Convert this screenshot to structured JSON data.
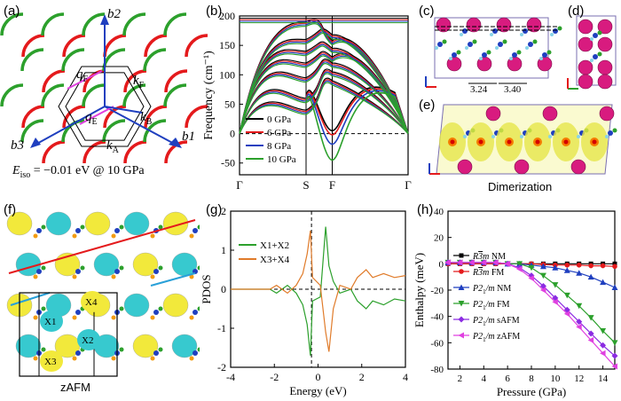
{
  "panels": {
    "a": {
      "label": "(a)",
      "axes": [
        "b2",
        "b3",
        "b1"
      ],
      "vectors": [
        "q",
        "q",
        "k",
        "k",
        "k"
      ],
      "subs": [
        "F",
        "E",
        "F",
        "B",
        "A"
      ],
      "eiso_prefix": "E",
      "eiso_sub": "iso",
      "eiso_rest": " = −0.01 eV @ 10 GPa"
    },
    "b": {
      "label": "(b)"
    },
    "c": {
      "label": "(c)",
      "dist1": "3.24",
      "dist2": "3.40"
    },
    "d": {
      "label": "(d)"
    },
    "e": {
      "label": "(e)",
      "caption": "Dimerization"
    },
    "f": {
      "label": "(f)",
      "sites": [
        "X1",
        "X2",
        "X3",
        "X4"
      ],
      "caption": "zAFM"
    },
    "g": {
      "label": "(g)"
    },
    "h": {
      "label": "(h)"
    }
  },
  "colors": {
    "red": "#e41a1c",
    "green": "#2ca02c",
    "blue": "#1f3fbf",
    "pink": "#d14aa8",
    "yellow": "#f2e93b",
    "cyan": "#37c9cf",
    "orange": "#e07b2a",
    "purple": "#8b2be2",
    "magenta": "#e040e0"
  },
  "chart_data": [
    {
      "type": "line",
      "panel": "b",
      "xlabel": "",
      "ylabel": "Frequency (cm⁻¹)",
      "xticks": [
        "Γ",
        "S",
        "F",
        "Γ"
      ],
      "yticks": [
        -50,
        0,
        50,
        100,
        150,
        200
      ],
      "ylim": [
        -70,
        200
      ],
      "series": [
        {
          "name": "0 GPa",
          "color": "#000000",
          "dip": 5
        },
        {
          "name": "6 GPa",
          "color": "#e41a1c",
          "dip": -2
        },
        {
          "name": "8 GPa",
          "color": "#1f3fbf",
          "dip": -18
        },
        {
          "name": "10 GPa",
          "color": "#2ca02c",
          "dip": -45
        }
      ]
    },
    {
      "type": "line",
      "panel": "g",
      "xlabel": "Energy (eV)",
      "ylabel": "PDOS",
      "xticks": [
        -4,
        -2,
        0,
        2,
        4
      ],
      "yticks": [
        -2,
        -1,
        0,
        1,
        2
      ],
      "xlim": [
        -4,
        4
      ],
      "ylim": [
        -2,
        2
      ],
      "series": [
        {
          "name": "X1+X2",
          "color": "#2ca02c"
        },
        {
          "name": "X3+X4",
          "color": "#e07b2a"
        }
      ]
    },
    {
      "type": "line",
      "panel": "h",
      "xlabel": "Pressure (GPa)",
      "ylabel": "Enthalpy (meV)",
      "xticks": [
        2,
        4,
        6,
        8,
        10,
        12,
        14
      ],
      "yticks": [
        -80,
        -60,
        -40,
        -20,
        0,
        20,
        40
      ],
      "xlim": [
        1,
        15
      ],
      "ylim": [
        -80,
        40
      ],
      "series": [
        {
          "pre": "R",
          "over": "3",
          "post": "m NM",
          "color": "#000000",
          "marker": "square",
          "x": [
            1,
            2,
            3,
            4,
            5,
            6,
            7,
            8,
            9,
            10,
            11,
            12,
            13,
            14,
            15
          ],
          "y": [
            0,
            0,
            0,
            0,
            0,
            0,
            0,
            0,
            0,
            0,
            0,
            0,
            0,
            0,
            0
          ]
        },
        {
          "pre": "R",
          "over": "3",
          "post": "m FM",
          "color": "#e41a1c",
          "marker": "circle",
          "x": [
            1,
            2,
            3,
            4,
            5,
            6,
            7,
            8,
            9,
            10,
            11,
            12,
            13,
            14,
            15
          ],
          "y": [
            0,
            0,
            0,
            0,
            0,
            0,
            0,
            0,
            -0.5,
            -1,
            -1,
            -1,
            -1.5,
            -1.5,
            -2
          ]
        },
        {
          "pre": "P2",
          "sub": "1",
          "post": "/m NM",
          "color": "#1f3fbf",
          "marker": "tri-up",
          "x": [
            1,
            2,
            3,
            4,
            5,
            6,
            7,
            8,
            9,
            10,
            11,
            12,
            13,
            14,
            15
          ],
          "y": [
            1,
            1,
            1,
            1,
            1,
            0,
            0,
            -1,
            -2,
            -3,
            -5,
            -7,
            -10,
            -14,
            -18
          ]
        },
        {
          "pre": "P2",
          "sub": "1",
          "post": "/m FM",
          "color": "#2ca02c",
          "marker": "tri-down",
          "x": [
            1,
            2,
            3,
            4,
            5,
            6,
            7,
            8,
            9,
            10,
            11,
            12,
            13,
            14,
            15
          ],
          "y": [
            1,
            1,
            1,
            1,
            1,
            0,
            0,
            -3,
            -9,
            -16,
            -24,
            -32,
            -41,
            -51,
            -60
          ]
        },
        {
          "pre": "P2",
          "sub": "1",
          "post": "/m sAFM",
          "color": "#8b2be2",
          "marker": "diamond",
          "x": [
            1,
            2,
            3,
            4,
            5,
            6,
            7,
            8,
            9,
            10,
            11,
            12,
            13,
            14,
            15
          ],
          "y": [
            1,
            1,
            1,
            1,
            1,
            0,
            -3,
            -9,
            -17,
            -26,
            -35,
            -44,
            -53,
            -62,
            -70
          ]
        },
        {
          "pre": "P2",
          "sub": "1",
          "post": "/m zAFM",
          "color": "#e040e0",
          "marker": "tri-left",
          "x": [
            1,
            2,
            3,
            4,
            5,
            6,
            7,
            8,
            9,
            10,
            11,
            12,
            13,
            14,
            15
          ],
          "y": [
            1,
            1,
            1,
            1,
            1,
            0,
            -4,
            -11,
            -20,
            -29,
            -38,
            -48,
            -58,
            -68,
            -78
          ]
        }
      ]
    }
  ]
}
